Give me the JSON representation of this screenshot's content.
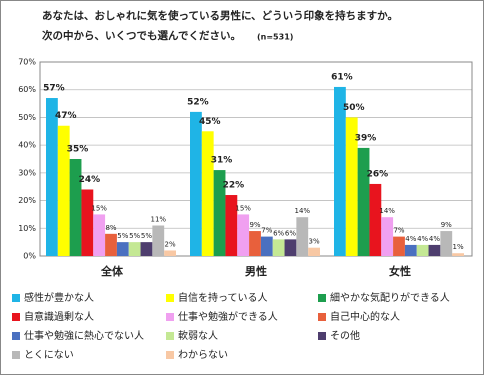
{
  "chart_data": {
    "type": "bar",
    "title": [
      "あなたは、おしゃれに気を使っている男性に、どういう印象を持ちますか。",
      "次の中から、いくつでも選んでください。"
    ],
    "subtitle": "(n=531)",
    "categories": [
      "全体",
      "男性",
      "女性"
    ],
    "series": [
      {
        "name": "感性が豊かな人",
        "color": "#1fb4e6",
        "values": [
          57,
          52,
          61
        ],
        "value_labels": [
          "57%",
          "52%",
          "61%"
        ]
      },
      {
        "name": "自信を持っている人",
        "color": "#ffff00",
        "values": [
          47,
          45,
          50
        ],
        "value_labels": [
          "47%",
          "45%",
          "50%"
        ]
      },
      {
        "name": "細やかな気配りができる人",
        "color": "#1d9e4e",
        "values": [
          35,
          31,
          39
        ],
        "value_labels": [
          "35%",
          "31%",
          "39%"
        ]
      },
      {
        "name": "自意識過剰な人",
        "color": "#e8141e",
        "values": [
          24,
          22,
          26
        ],
        "value_labels": [
          "24%",
          "22%",
          "26%"
        ]
      },
      {
        "name": "仕事や勉強ができる人",
        "color": "#f0a0f0",
        "values": [
          15,
          15,
          14
        ],
        "value_labels": [
          "15%",
          "15%",
          "14%"
        ]
      },
      {
        "name": "自己中心的な人",
        "color": "#e8603c",
        "values": [
          8,
          9,
          7
        ],
        "value_labels": [
          "8%",
          "9%",
          "7%"
        ]
      },
      {
        "name": "仕事や勉強に熱心でない人",
        "color": "#4a70c0",
        "values": [
          5,
          7,
          4
        ],
        "value_labels": [
          "5%",
          "7%",
          "4%"
        ]
      },
      {
        "name": "軟弱な人",
        "color": "#c4e894",
        "values": [
          5,
          6,
          4
        ],
        "value_labels": [
          "5%",
          "6%",
          "4%"
        ]
      },
      {
        "name": "その他",
        "color": "#4e3e6e",
        "values": [
          5,
          6,
          4
        ],
        "value_labels": [
          "5%",
          "6%",
          "4%"
        ]
      },
      {
        "name": "とくにない",
        "color": "#b8b8b8",
        "values": [
          11,
          14,
          9
        ],
        "value_labels": [
          "11%",
          "14%",
          "9%"
        ]
      },
      {
        "name": "わからない",
        "color": "#f8c8a4",
        "values": [
          2,
          3,
          1
        ],
        "value_labels": [
          "2%",
          "3%",
          "1%"
        ]
      }
    ],
    "ylim": [
      0,
      70
    ],
    "yticks": [
      {
        "value": 0,
        "label": "0%"
      },
      {
        "value": 10,
        "label": "10%"
      },
      {
        "value": 20,
        "label": "20%"
      },
      {
        "value": 30,
        "label": "30%"
      },
      {
        "value": 40,
        "label": "40%"
      },
      {
        "value": 50,
        "label": "50%"
      },
      {
        "value": 60,
        "label": "60%"
      },
      {
        "value": 70,
        "label": "70%"
      }
    ],
    "grid": true,
    "legend": "bottom"
  }
}
